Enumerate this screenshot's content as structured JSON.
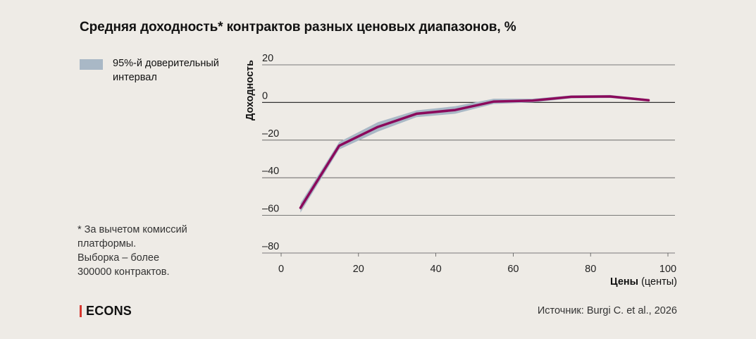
{
  "title": "Средняя доходность* контрактов разных ценовых диапазонов, %",
  "legend": {
    "band_label": "95%-й доверительный интервал"
  },
  "footnote": {
    "line1": "* За вычетом комиссий",
    "line2": "платформы.",
    "line3": "Выборка – более",
    "line4": "300000 контрактов."
  },
  "logo": {
    "text": "ECONS"
  },
  "source": "Источник: Burgi C. et al., 2026",
  "colors": {
    "line": "#8b0a5c",
    "band": "#a9b8c6",
    "accent": "#d7372f",
    "background": "#eeebe6"
  },
  "chart_data": {
    "type": "line",
    "title": "Средняя доходность* контрактов разных ценовых диапазонов, %",
    "xlabel_bold": "Цены",
    "xlabel_unit": "(центы)",
    "ylabel": "Доходность",
    "xlim": [
      0,
      100
    ],
    "ylim": [
      -80,
      20
    ],
    "x_ticks": [
      0,
      20,
      40,
      60,
      80,
      100
    ],
    "y_ticks": [
      20,
      0,
      -20,
      -40,
      -60,
      -80
    ],
    "y_tick_labels": [
      "20",
      "0",
      "–20",
      "–40",
      "–60",
      "–80"
    ],
    "grid": "horizontal",
    "series": [
      {
        "x": [
          5,
          15,
          25,
          35,
          45,
          55,
          65,
          75,
          85,
          95
        ],
        "y": [
          -56,
          -23,
          -13,
          -6,
          -4,
          0.5,
          1,
          3,
          3.2,
          1.2
        ],
        "ci_low": [
          -58.5,
          -25,
          -15.5,
          -7.8,
          -6,
          -0.8,
          0,
          2.2,
          2.4,
          0.6
        ],
        "ci_high": [
          -53.5,
          -21,
          -10.5,
          -4.2,
          -2,
          2,
          2,
          3.8,
          4,
          1.8
        ]
      }
    ]
  }
}
